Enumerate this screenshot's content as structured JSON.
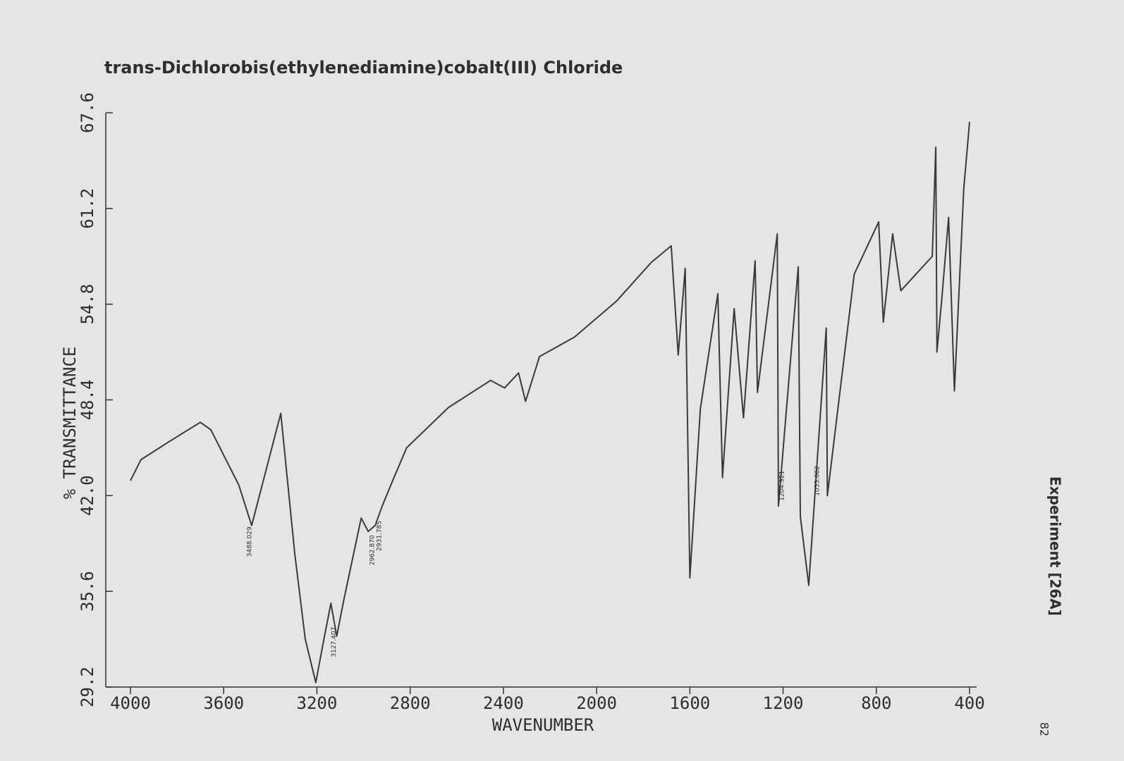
{
  "chart_data": {
    "type": "line",
    "title": "trans-Dichlorobis(ethylenediamine)cobalt(III) Chloride",
    "x_label": "WAVENUMBER",
    "y_label": "% TRANSMITTANCE",
    "side_note": "Experiment  [26A]",
    "page_number": "82",
    "xlim": [
      4000,
      400
    ],
    "ylim": [
      29.2,
      67.6
    ],
    "xticks": [
      4000,
      3600,
      3200,
      2800,
      2400,
      2000,
      1600,
      1200,
      800,
      400
    ],
    "yticks": [
      29.2,
      35.6,
      {
        "value": 42,
        "label": "42.0"
      },
      48.4,
      54.8,
      61.2,
      67.6
    ],
    "color": "#3a3a3a",
    "x": [
      4000,
      3955,
      3835,
      3700,
      3655,
      3535,
      3480,
      3355,
      3295,
      3250,
      3205,
      3170,
      3140,
      3115,
      3085,
      3010,
      2980,
      2950,
      2920,
      2875,
      2815,
      2635,
      2455,
      2395,
      2335,
      2305,
      2245,
      2095,
      1915,
      1765,
      1680,
      1650,
      1620,
      1600,
      1555,
      1480,
      1460,
      1410,
      1370,
      1320,
      1310,
      1225,
      1220,
      1135,
      1126,
      1090,
      1015,
      1010,
      895,
      790,
      770,
      730,
      695,
      560,
      545,
      540,
      520,
      490,
      465,
      425,
      400
    ],
    "values": [
      43.0,
      44.4,
      45.6,
      46.9,
      46.4,
      42.7,
      40.0,
      47.5,
      38.1,
      32.4,
      29.5,
      32.4,
      34.8,
      32.6,
      35.0,
      40.5,
      39.6,
      40.0,
      41.3,
      43.0,
      45.2,
      47.9,
      49.7,
      49.2,
      50.2,
      48.3,
      51.3,
      52.6,
      55.0,
      57.6,
      58.7,
      51.4,
      57.2,
      36.5,
      47.8,
      55.5,
      43.2,
      54.5,
      47.2,
      57.7,
      48.9,
      59.5,
      41.3,
      57.3,
      40.6,
      36.0,
      53.2,
      42.0,
      56.8,
      60.3,
      53.6,
      59.5,
      55.7,
      58.0,
      65.3,
      51.6,
      55.0,
      60.6,
      49.0,
      62.5,
      67.0
    ],
    "peaks": [
      {
        "x": 3488.029,
        "label": "3488.029"
      },
      {
        "x": 3127.407,
        "label": "3127.407"
      },
      {
        "x": 2962.87,
        "label": "2962.870"
      },
      {
        "x": 2931.785,
        "label": "2931.785"
      },
      {
        "x": 1204.921,
        "label": "1204.921"
      },
      {
        "x": 1053.082,
        "label": "1053.082"
      }
    ]
  }
}
